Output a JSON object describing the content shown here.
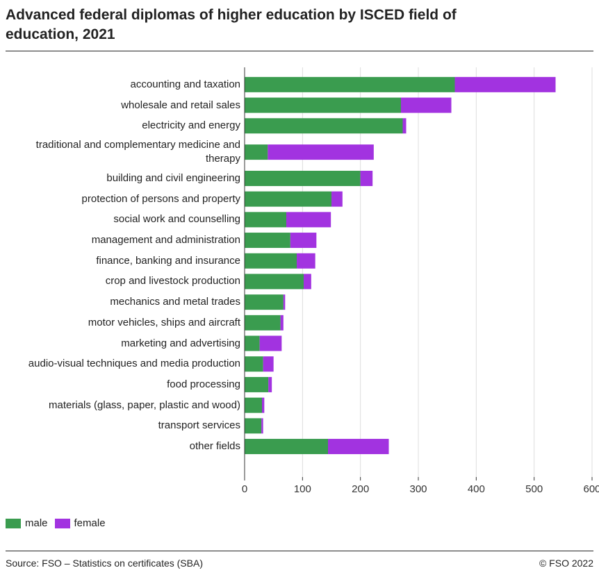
{
  "chart_data": {
    "type": "stacked-bar-horizontal",
    "title": "Advanced federal diplomas of higher education by ISCED field of education, 2021",
    "categories": [
      "accounting and taxation",
      "wholesale and retail sales",
      "electricity and energy",
      "traditional and complementary medicine and therapy",
      "building and civil engineering",
      "protection of persons and property",
      "social work and counselling",
      "management and administration",
      "finance, banking and insurance",
      "crop and livestock production",
      "mechanics and metal trades",
      "motor vehicles, ships and aircraft",
      "marketing and advertising",
      "audio-visual techniques and media production",
      "food processing",
      "materials (glass, paper, plastic and wood)",
      "transport services",
      "other fields"
    ],
    "series": [
      {
        "name": "male",
        "color": "#3a9c4f",
        "values": [
          363,
          270,
          273,
          40,
          200,
          150,
          72,
          79,
          90,
          102,
          67,
          62,
          26,
          32,
          41,
          30,
          29,
          144
        ]
      },
      {
        "name": "female",
        "color": "#a233e0",
        "values": [
          174,
          87,
          6,
          183,
          21,
          19,
          77,
          45,
          32,
          13,
          3,
          5,
          38,
          18,
          6,
          4,
          3,
          105
        ]
      }
    ],
    "xlim": [
      0,
      600
    ],
    "xticks": [
      0,
      100,
      200,
      300,
      400,
      500,
      600
    ],
    "grid": true,
    "source": "Source: FSO – Statistics on certificates (SBA)",
    "copyright": "© FSO 2022"
  }
}
